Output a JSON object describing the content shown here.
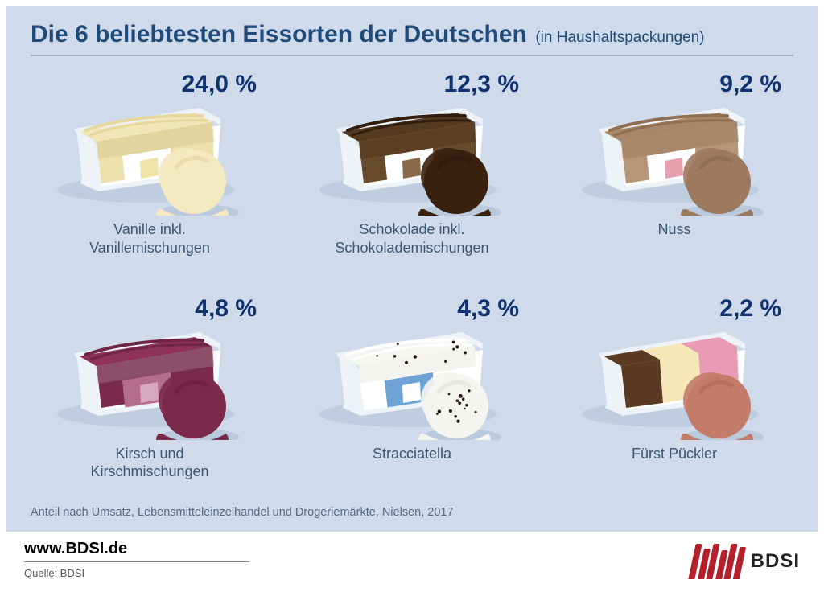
{
  "colors": {
    "panel_bg": "#cfdbea",
    "title_text": "#1f4a7a",
    "hr": "#9ab0c7",
    "percent_text": "#10326e",
    "label_text": "#3a5772",
    "footnote_text": "#556b82",
    "tub_rim": "#eef3f8",
    "tub_shadow": "#aebfd3",
    "drip_shadow": "#a9bad0",
    "logo_bar": "#b3202b"
  },
  "header": {
    "title": "Die 6 beliebtesten Eissorten der Deutschen",
    "subtitle": "(in Haushaltspackungen)"
  },
  "footnote": "Anteil nach Umsatz, Lebensmitteleinzelhandel und Drogeriemärkte, Nielsen, 2017",
  "footer": {
    "url": "www.BDSI.de",
    "source": "Quelle: BDSI",
    "logo_label": "BDSI"
  },
  "items": [
    {
      "percent": "24,0 %",
      "label_line1": "Vanille inkl.",
      "label_line2": "Vanillemischungen",
      "scoop_color": "#f4e9c0",
      "scoop_shadow": "#e0d29a",
      "top_color": "#f1e6b8",
      "top_accent": "#e5d79d",
      "side_color": "#ece0ad",
      "side_accent": "#d9cc8f",
      "label_band": "#ffffff",
      "tag_color": "#efe3a8",
      "has_speckles": false,
      "stripes": null
    },
    {
      "percent": "12,3 %",
      "label_line1": "Schokolade inkl.",
      "label_line2": "Schokolademischungen",
      "scoop_color": "#3a210f",
      "scoop_shadow": "#2a160a",
      "top_color": "#543a21",
      "top_accent": "#311d0d",
      "side_color": "#684a2c",
      "side_accent": "#53381e",
      "label_band": "#ffffff",
      "tag_color": "#886a4a",
      "has_speckles": false,
      "stripes": null
    },
    {
      "percent": "9,2 %",
      "label_line1": "Nuss",
      "label_line2": "",
      "scoop_color": "#9d7a5f",
      "scoop_shadow": "#82644d",
      "top_color": "#a88668",
      "top_accent": "#8f6e52",
      "side_color": "#b69679",
      "side_accent": "#9c7b5f",
      "label_band": "#ffffff",
      "tag_color": "#e8a0b0",
      "has_speckles": false,
      "stripes": null
    },
    {
      "percent": "4,8 %",
      "label_line1": "Kirsch und",
      "label_line2": "Kirschmischungen",
      "scoop_color": "#7b2a4a",
      "scoop_shadow": "#5f1e38",
      "top_color": "#8e3356",
      "top_accent": "#6e2641",
      "side_color": "#7b2c4b",
      "side_accent": "#9a6d82",
      "label_band": "#b56d8c",
      "tag_color": "#d7a7bd",
      "has_speckles": false,
      "stripes": null
    },
    {
      "percent": "4,3 %",
      "label_line1": "Stracciatella",
      "label_line2": "",
      "scoop_color": "#f4f4f0",
      "scoop_shadow": "#dcdcd6",
      "top_color": "#f6f6f2",
      "top_accent": "#ffffff",
      "side_color": "#ffffff",
      "side_accent": "#e9e9e4",
      "label_band": "#6fa3d6",
      "tag_color": "#ffffff",
      "has_speckles": true,
      "stripes": null
    },
    {
      "percent": "2,2 %",
      "label_line1": "Fürst Pückler",
      "label_line2": "",
      "scoop_color": "#c47c6a",
      "scoop_shadow": "#a36254",
      "top_color": "#ffffff",
      "top_accent": "#ffffff",
      "side_color": "#ffffff",
      "side_accent": "#ffffff",
      "label_band": "#ffffff",
      "tag_color": "#ffffff",
      "has_speckles": false,
      "stripes": [
        "#5a3a22",
        "#f5e7b7",
        "#e99bb6"
      ]
    }
  ]
}
